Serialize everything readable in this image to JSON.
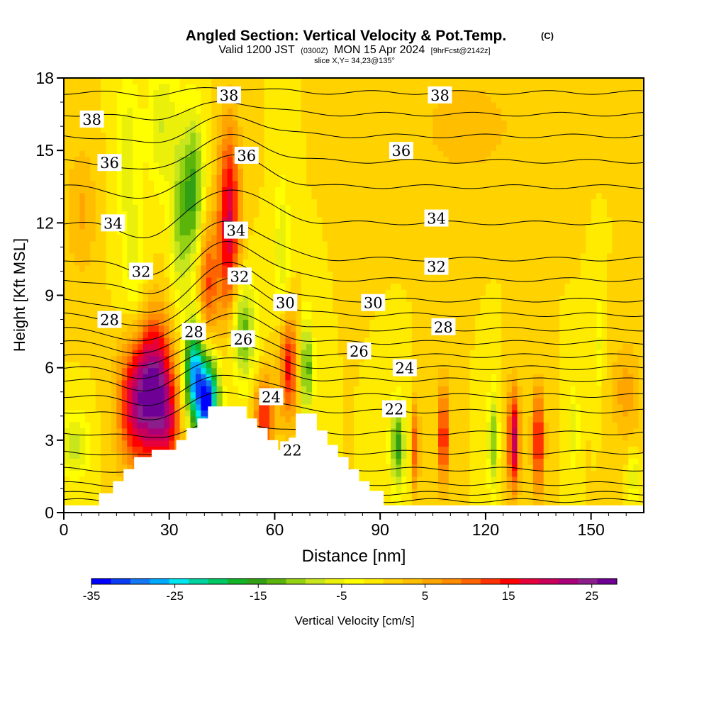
{
  "chart_data": {
    "type": "heatmap",
    "title": "Angled Section: Vertical Velocity & Pot.Temp.",
    "title_mark": "(C)",
    "subtitle_parts": [
      "Valid 1200 JST",
      "(0300Z)",
      "MON 15 Apr 2024",
      "[9hrFcst@2142z]"
    ],
    "subtitle2": "slice X,Y= 34,23@135°",
    "xlabel": "Distance [nm]",
    "ylabel": "Height [Kft MSL]",
    "xlim": [
      0,
      165
    ],
    "ylim": [
      0,
      18
    ],
    "x_ticks": [
      0,
      30,
      60,
      90,
      120,
      150
    ],
    "y_ticks": [
      0,
      3,
      6,
      9,
      12,
      15,
      18
    ],
    "colorbar": {
      "label": "Vertical Velocity [cm/s]",
      "range": [
        -35,
        28
      ],
      "tick_values": [
        -35,
        -25,
        -15,
        -5,
        5,
        15,
        25
      ],
      "tick_labels": [
        "-35",
        "-25",
        "-15",
        "-5",
        "5",
        "15",
        "25"
      ],
      "colors": [
        "#0000ff",
        "#0a3cf5",
        "#1478f5",
        "#00aaff",
        "#00e6f0",
        "#00d2a0",
        "#00c864",
        "#14b428",
        "#32a014",
        "#5ab40a",
        "#96d214",
        "#c8e61e",
        "#ebf00a",
        "#ffff00",
        "#ffeb00",
        "#ffd200",
        "#ffbe00",
        "#ffa500",
        "#ff8c00",
        "#ff6400",
        "#ff3200",
        "#ff0000",
        "#e6003c",
        "#c8005a",
        "#aa0078",
        "#8c1e8c",
        "#6e0096"
      ]
    },
    "terrain": [
      [
        0,
        0.3
      ],
      [
        10,
        0.3
      ],
      [
        10,
        0.8
      ],
      [
        14,
        0.8
      ],
      [
        14,
        1.3
      ],
      [
        17,
        1.3
      ],
      [
        17,
        1.8
      ],
      [
        20,
        1.8
      ],
      [
        20,
        2.3
      ],
      [
        25,
        2.3
      ],
      [
        25,
        2.6
      ],
      [
        32,
        2.6
      ],
      [
        32,
        3.0
      ],
      [
        35,
        3.0
      ],
      [
        35,
        3.5
      ],
      [
        38,
        3.5
      ],
      [
        38,
        3.9
      ],
      [
        41,
        3.9
      ],
      [
        41,
        4.4
      ],
      [
        52,
        4.4
      ],
      [
        52,
        3.9
      ],
      [
        55,
        3.9
      ],
      [
        55,
        3.5
      ],
      [
        58,
        3.5
      ],
      [
        58,
        3.0
      ],
      [
        61,
        3.0
      ],
      [
        61,
        2.6
      ],
      [
        64,
        2.6
      ],
      [
        64,
        3.1
      ],
      [
        66,
        3.1
      ],
      [
        66,
        4.1
      ],
      [
        72,
        4.1
      ],
      [
        72,
        3.4
      ],
      [
        75,
        3.4
      ],
      [
        75,
        2.8
      ],
      [
        78,
        2.8
      ],
      [
        78,
        2.3
      ],
      [
        81,
        2.3
      ],
      [
        81,
        1.8
      ],
      [
        84,
        1.8
      ],
      [
        84,
        1.3
      ],
      [
        87,
        1.3
      ],
      [
        87,
        0.9
      ],
      [
        91,
        0.9
      ],
      [
        91,
        0.3
      ],
      [
        165,
        0.3
      ]
    ],
    "w_cells": [
      {
        "x": 20,
        "y": 4.5,
        "sx": 3.5,
        "sy": 1.8,
        "w": 17
      },
      {
        "x": 26,
        "y": 5.2,
        "sx": 3.5,
        "sy": 2.0,
        "w": 24
      },
      {
        "x": 30,
        "y": 3.5,
        "sx": 2.5,
        "sy": 1.5,
        "w": 10
      },
      {
        "x": 41,
        "y": 4.6,
        "sx": 2.2,
        "sy": 1.3,
        "w": -32
      },
      {
        "x": 37,
        "y": 5.8,
        "sx": 2.0,
        "sy": 1.5,
        "w": -25
      },
      {
        "x": 47,
        "y": 12.0,
        "sx": 2.2,
        "sy": 2.8,
        "w": 19
      },
      {
        "x": 41,
        "y": 9.5,
        "sx": 2.0,
        "sy": 1.8,
        "w": 12
      },
      {
        "x": 37,
        "y": 13.5,
        "sx": 2.0,
        "sy": 2.2,
        "w": -14
      },
      {
        "x": 33,
        "y": 12.0,
        "sx": 2.0,
        "sy": 2.5,
        "w": -10
      },
      {
        "x": 57,
        "y": 4.0,
        "sx": 2.0,
        "sy": 1.2,
        "w": 14
      },
      {
        "x": 64,
        "y": 6.0,
        "sx": 1.8,
        "sy": 1.5,
        "w": 15
      },
      {
        "x": 69,
        "y": 6.0,
        "sx": 1.3,
        "sy": 1.5,
        "w": -14
      },
      {
        "x": 51,
        "y": 7.5,
        "sx": 2.5,
        "sy": 1.5,
        "w": -14
      },
      {
        "x": 62,
        "y": 11.0,
        "sx": 1.5,
        "sy": 2.0,
        "w": -7
      },
      {
        "x": 95,
        "y": 2.8,
        "sx": 1.5,
        "sy": 1.3,
        "w": -15
      },
      {
        "x": 100,
        "y": 2.8,
        "sx": 0.8,
        "sy": 1.3,
        "w": 12
      },
      {
        "x": 108,
        "y": 3.2,
        "sx": 1.0,
        "sy": 1.5,
        "w": 16
      },
      {
        "x": 122,
        "y": 3.0,
        "sx": 1.0,
        "sy": 1.5,
        "w": -12
      },
      {
        "x": 128,
        "y": 3.0,
        "sx": 1.2,
        "sy": 1.5,
        "w": 20
      },
      {
        "x": 135,
        "y": 3.0,
        "sx": 1.2,
        "sy": 1.5,
        "w": 16
      },
      {
        "x": 145,
        "y": 3.5,
        "sx": 1.0,
        "sy": 1.2,
        "w": -7
      },
      {
        "x": 152,
        "y": 7.0,
        "sx": 1.0,
        "sy": 1.5,
        "w": -5
      },
      {
        "x": 162,
        "y": 1.5,
        "sx": 1.2,
        "sy": 0.8,
        "w": -7
      },
      {
        "x": 5,
        "y": 12.5,
        "sx": 3.0,
        "sy": 2.0,
        "w": 5
      },
      {
        "x": 3,
        "y": 2.8,
        "sx": 3.0,
        "sy": 1.0,
        "w": -8
      },
      {
        "x": 28,
        "y": 16.0,
        "sx": 3.0,
        "sy": 2.0,
        "w": -7
      },
      {
        "x": 18,
        "y": 15.0,
        "sx": 2.5,
        "sy": 2.5,
        "w": -6
      },
      {
        "x": 20,
        "y": 10.0,
        "sx": 2.5,
        "sy": 2.0,
        "w": -5
      },
      {
        "x": 115,
        "y": 16.0,
        "sx": 10.0,
        "sy": 1.5,
        "w": 4
      },
      {
        "x": 160,
        "y": 5.0,
        "sx": 3.0,
        "sy": 1.5,
        "w": 6
      }
    ],
    "theta_levels": [
      {
        "label": "38",
        "yl": 17.4,
        "amp": 0.2,
        "pos": [
          [
            8,
            16.3
          ],
          [
            47,
            17.3
          ],
          [
            107,
            17.3
          ]
        ]
      },
      {
        "label": "36",
        "yl": 15.6,
        "amp": 0.8,
        "pos": [
          [
            13,
            14.5
          ],
          [
            52,
            14.8
          ],
          [
            96,
            15.0
          ]
        ]
      },
      {
        "label": "34",
        "yl": 13.5,
        "amp": 1.3,
        "pos": [
          [
            14,
            12.0
          ],
          [
            49,
            11.7
          ],
          [
            106,
            12.2
          ]
        ]
      },
      {
        "label": "32",
        "yl": 10.5,
        "amp": 1.6,
        "pos": [
          [
            22,
            10.0
          ],
          [
            50,
            9.8
          ],
          [
            106,
            10.2
          ]
        ]
      },
      {
        "label": "30",
        "yl": 8.8,
        "amp": 1.5,
        "pos": [
          [
            63,
            8.7
          ],
          [
            88,
            8.7
          ]
        ]
      },
      {
        "label": "28",
        "yl": 7.6,
        "amp": 1.4,
        "pos": [
          [
            13,
            8.0
          ],
          [
            37,
            7.5
          ],
          [
            108,
            7.7
          ]
        ]
      },
      {
        "label": "26",
        "yl": 6.5,
        "amp": 1.0,
        "pos": [
          [
            51,
            7.2
          ],
          [
            84,
            6.7
          ]
        ]
      },
      {
        "label": "24",
        "yl": 5.5,
        "amp": 1.0,
        "pos": [
          [
            59,
            4.8
          ],
          [
            97,
            6.0
          ]
        ]
      },
      {
        "label": "22",
        "yl": 4.2,
        "amp": 0.8,
        "pos": [
          [
            65,
            2.6
          ],
          [
            94,
            4.3
          ]
        ]
      }
    ]
  }
}
